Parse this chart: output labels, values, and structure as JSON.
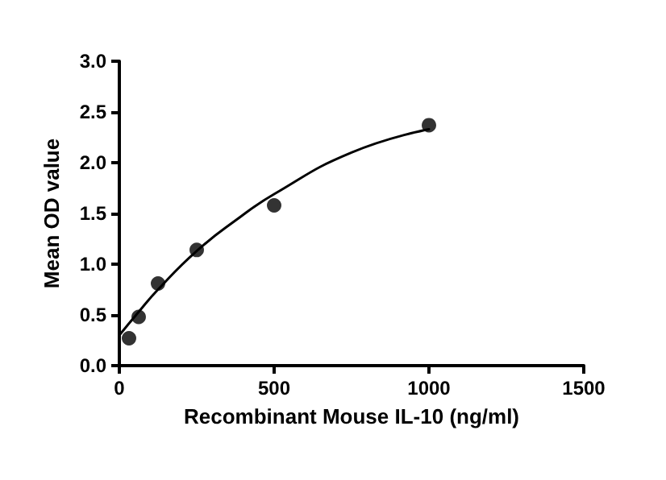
{
  "chart_data": {
    "type": "scatter",
    "xlabel": "Recombinant Mouse IL-10 (ng/ml)",
    "ylabel": "Mean OD value",
    "xlim": [
      0,
      1500
    ],
    "xticks": [
      0,
      500,
      1000,
      1500
    ],
    "ylim": [
      0,
      3
    ],
    "yticks": [
      {
        "value": 0,
        "label": "0.0"
      },
      0.5,
      {
        "value": 1,
        "label": "1.0"
      },
      1.5,
      {
        "value": 2,
        "label": "2.0"
      },
      2.5,
      {
        "value": 3,
        "label": "3.0"
      }
    ],
    "grid": false,
    "series": [
      {
        "marker": "circle",
        "color": "#000000",
        "x": [
          31.25,
          62.5,
          125,
          250,
          500,
          1000
        ],
        "values": [
          0.27,
          0.48,
          0.81,
          1.14,
          1.58,
          2.37
        ]
      },
      {
        "type": "line",
        "marker": "none",
        "line_style": "solid",
        "color": "#000000",
        "x": [
          0,
          62.5,
          125,
          250,
          375,
          500,
          750,
          1000
        ],
        "values": [
          0.3,
          0.53,
          0.75,
          1.13,
          1.43,
          1.69,
          2.1,
          2.33
        ]
      }
    ]
  }
}
